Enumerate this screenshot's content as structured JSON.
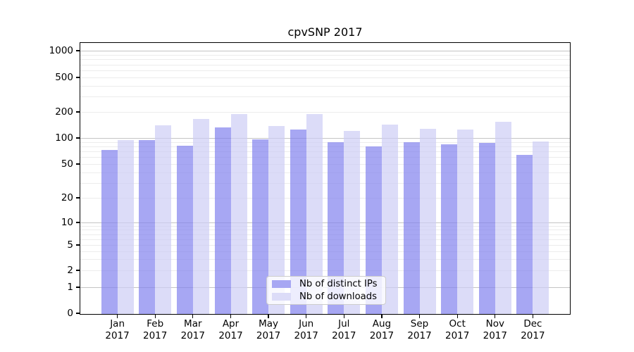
{
  "title": "cpvSNP 2017",
  "chart_data": {
    "type": "bar",
    "title": "cpvSNP 2017",
    "categories": [
      "Jan",
      "Feb",
      "Mar",
      "Apr",
      "May",
      "Jun",
      "Jul",
      "Aug",
      "Sep",
      "Oct",
      "Nov",
      "Dec"
    ],
    "category_year": "2017",
    "series": [
      {
        "name": "Nb of distinct IPs",
        "color": "#a7a7f3",
        "fill": "rgba(129,129,238,0.7)",
        "values": [
          73,
          95,
          82,
          132,
          96,
          125,
          89,
          80,
          89,
          85,
          88,
          64
        ]
      },
      {
        "name": "Nb of downloads",
        "color": "#dcdcf8",
        "fill": "rgba(205,205,245,0.7)",
        "values": [
          94,
          140,
          167,
          189,
          138,
          188,
          121,
          142,
          128,
          126,
          154,
          91
        ]
      }
    ],
    "y_scale": "symlog",
    "ylim": [
      0,
      1000
    ],
    "y_ticks": [
      0,
      1,
      2,
      5,
      10,
      20,
      50,
      100,
      200,
      500,
      1000
    ],
    "y_major_gridlines": [
      1,
      10,
      100,
      1000
    ],
    "y_minor_gridlines": [
      2,
      3,
      4,
      5,
      6,
      7,
      8,
      9,
      20,
      30,
      40,
      50,
      60,
      70,
      80,
      90,
      200,
      300,
      400,
      500,
      600,
      700,
      800,
      900
    ],
    "grid": true,
    "legend_position": "lower center"
  },
  "colors": {
    "background": "#ffffff",
    "axis": "#000000",
    "text": "#000000",
    "major_grid": "#c4c4c4",
    "minor_grid": "#ececec",
    "legend_border": "#cccccc",
    "legend_background": "rgba(255,255,255,0.8)"
  }
}
